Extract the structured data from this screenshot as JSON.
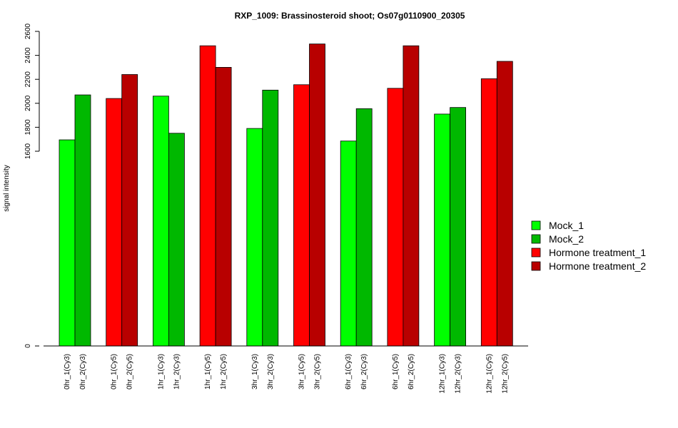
{
  "chart_data": {
    "type": "bar",
    "title": "RXP_1009: Brassinosteroid shoot; Os07g0110900_20305",
    "xlabel": "",
    "ylabel": "signal intensity",
    "y_ticks": [
      0,
      1600,
      1800,
      2000,
      2200,
      2400,
      2600
    ],
    "y_axis_break": "axis jumps from 0 to 1600",
    "grid": false,
    "legend_position": "right",
    "categories": [
      "0hr_1(Cy3)",
      "0hr_2(Cy3)",
      "0hr_1(Cy5)",
      "0hr_2(Cy5)",
      "1hr_1(Cy3)",
      "1hr_2(Cy3)",
      "1hr_1(Cy5)",
      "1hr_2(Cy5)",
      "3hr_1(Cy3)",
      "3hr_2(Cy3)",
      "3hr_1(Cy5)",
      "3hr_2(Cy5)",
      "6hr_1(Cy3)",
      "6hr_2(Cy3)",
      "6hr_1(Cy5)",
      "6hr_2(Cy5)",
      "12hr_1(Cy3)",
      "12hr_2(Cy3)",
      "12hr_1(Cy5)",
      "12hr_2(Cy5)"
    ],
    "values": [
      1695,
      2070,
      2040,
      2240,
      2060,
      1750,
      2480,
      2300,
      1790,
      2110,
      2155,
      2495,
      1685,
      1955,
      2125,
      2480,
      1910,
      1965,
      2205,
      2350
    ],
    "bar_series": [
      0,
      1,
      2,
      3,
      0,
      1,
      2,
      3,
      0,
      1,
      2,
      3,
      0,
      1,
      2,
      3,
      0,
      1,
      2,
      3
    ],
    "series": [
      {
        "name": "Mock_1",
        "color": "#00ff00"
      },
      {
        "name": "Mock_2",
        "color": "#00b800"
      },
      {
        "name": "Hormone treatment_1",
        "color": "#ff0000"
      },
      {
        "name": "Hormone treatment_2",
        "color": "#b80000"
      }
    ]
  }
}
